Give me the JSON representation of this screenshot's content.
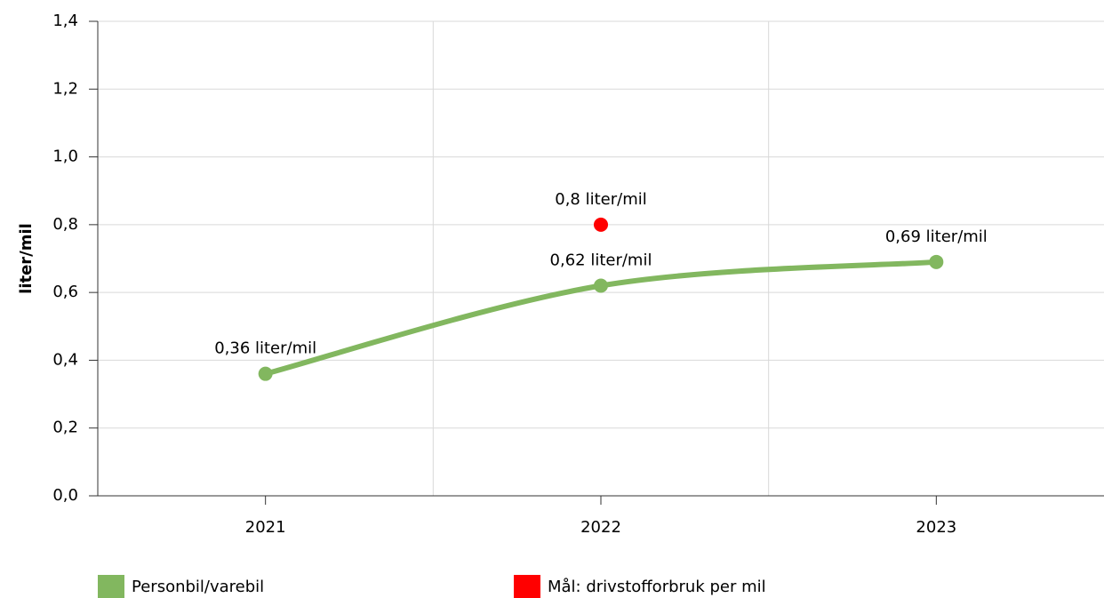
{
  "chart_data": {
    "type": "line",
    "y_label": "liter/mil",
    "categories": [
      "2021",
      "2022",
      "2023"
    ],
    "series": [
      {
        "name": "Personbil/varebil",
        "color": "#82b75f",
        "values": [
          0.36,
          0.62,
          0.69
        ],
        "value_labels": [
          "0,36 liter/mil",
          "0,62 liter/mil",
          "0,69 liter/mil"
        ],
        "smooth": true
      },
      {
        "name": "Mål: drivstofforbruk per mil",
        "color": "#ff0000",
        "values": [
          null,
          0.8,
          null
        ],
        "value_labels": [
          null,
          "0,8 liter/mil",
          null
        ]
      }
    ],
    "ylim": [
      0,
      1.4
    ],
    "yticks": [
      {
        "value": 0,
        "label": "0,0"
      },
      {
        "value": 0.2,
        "label": "0,2"
      },
      {
        "value": 0.4,
        "label": "0,4"
      },
      {
        "value": 0.6,
        "label": "0,6"
      },
      {
        "value": 0.8,
        "label": "0,8"
      },
      {
        "value": 1.0,
        "label": "1,0"
      },
      {
        "value": 1.2,
        "label": "1,2"
      },
      {
        "value": 1.4,
        "label": "1,4"
      }
    ],
    "grid": true,
    "legend": "bottom"
  }
}
